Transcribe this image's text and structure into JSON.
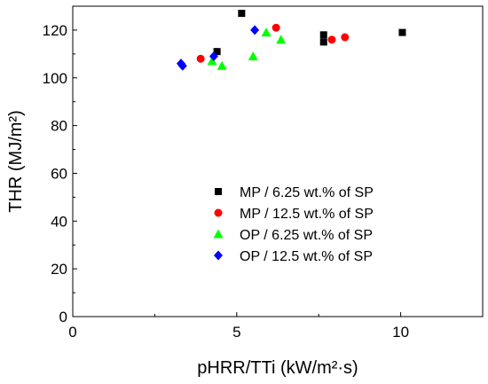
{
  "chart_data": {
    "type": "scatter",
    "xlabel": "pHRR/TTi (kW/m²·s)",
    "ylabel": "THR (MJ/m²)",
    "xlim": [
      0,
      12.5
    ],
    "ylim": [
      0,
      130
    ],
    "xticks": [
      0,
      5,
      10
    ],
    "yticks": [
      0,
      20,
      40,
      60,
      80,
      100,
      120
    ],
    "grid": false,
    "legend_position": "lower-center",
    "series": [
      {
        "name": "MP / 6.25 wt.% of SP",
        "marker": "square",
        "color": "#000000",
        "points": [
          [
            4.4,
            111
          ],
          [
            5.15,
            127
          ],
          [
            7.65,
            118
          ],
          [
            7.65,
            115
          ],
          [
            10.05,
            119
          ]
        ]
      },
      {
        "name": "MP / 12.5 wt.% of SP",
        "marker": "circle",
        "color": "#ff0000",
        "points": [
          [
            3.9,
            108
          ],
          [
            6.2,
            121
          ],
          [
            7.9,
            116
          ],
          [
            8.3,
            117
          ]
        ]
      },
      {
        "name": "OP / 6.25 wt.% of SP",
        "marker": "triangle",
        "color": "#00ff00",
        "points": [
          [
            4.25,
            107
          ],
          [
            4.55,
            105
          ],
          [
            5.5,
            109
          ],
          [
            5.9,
            119
          ],
          [
            6.35,
            116
          ]
        ]
      },
      {
        "name": "OP / 12.5 wt.% of SP",
        "marker": "diamond",
        "color": "#0000ff",
        "points": [
          [
            3.3,
            106
          ],
          [
            3.35,
            105
          ],
          [
            4.3,
            109
          ],
          [
            5.55,
            120
          ]
        ]
      }
    ]
  }
}
